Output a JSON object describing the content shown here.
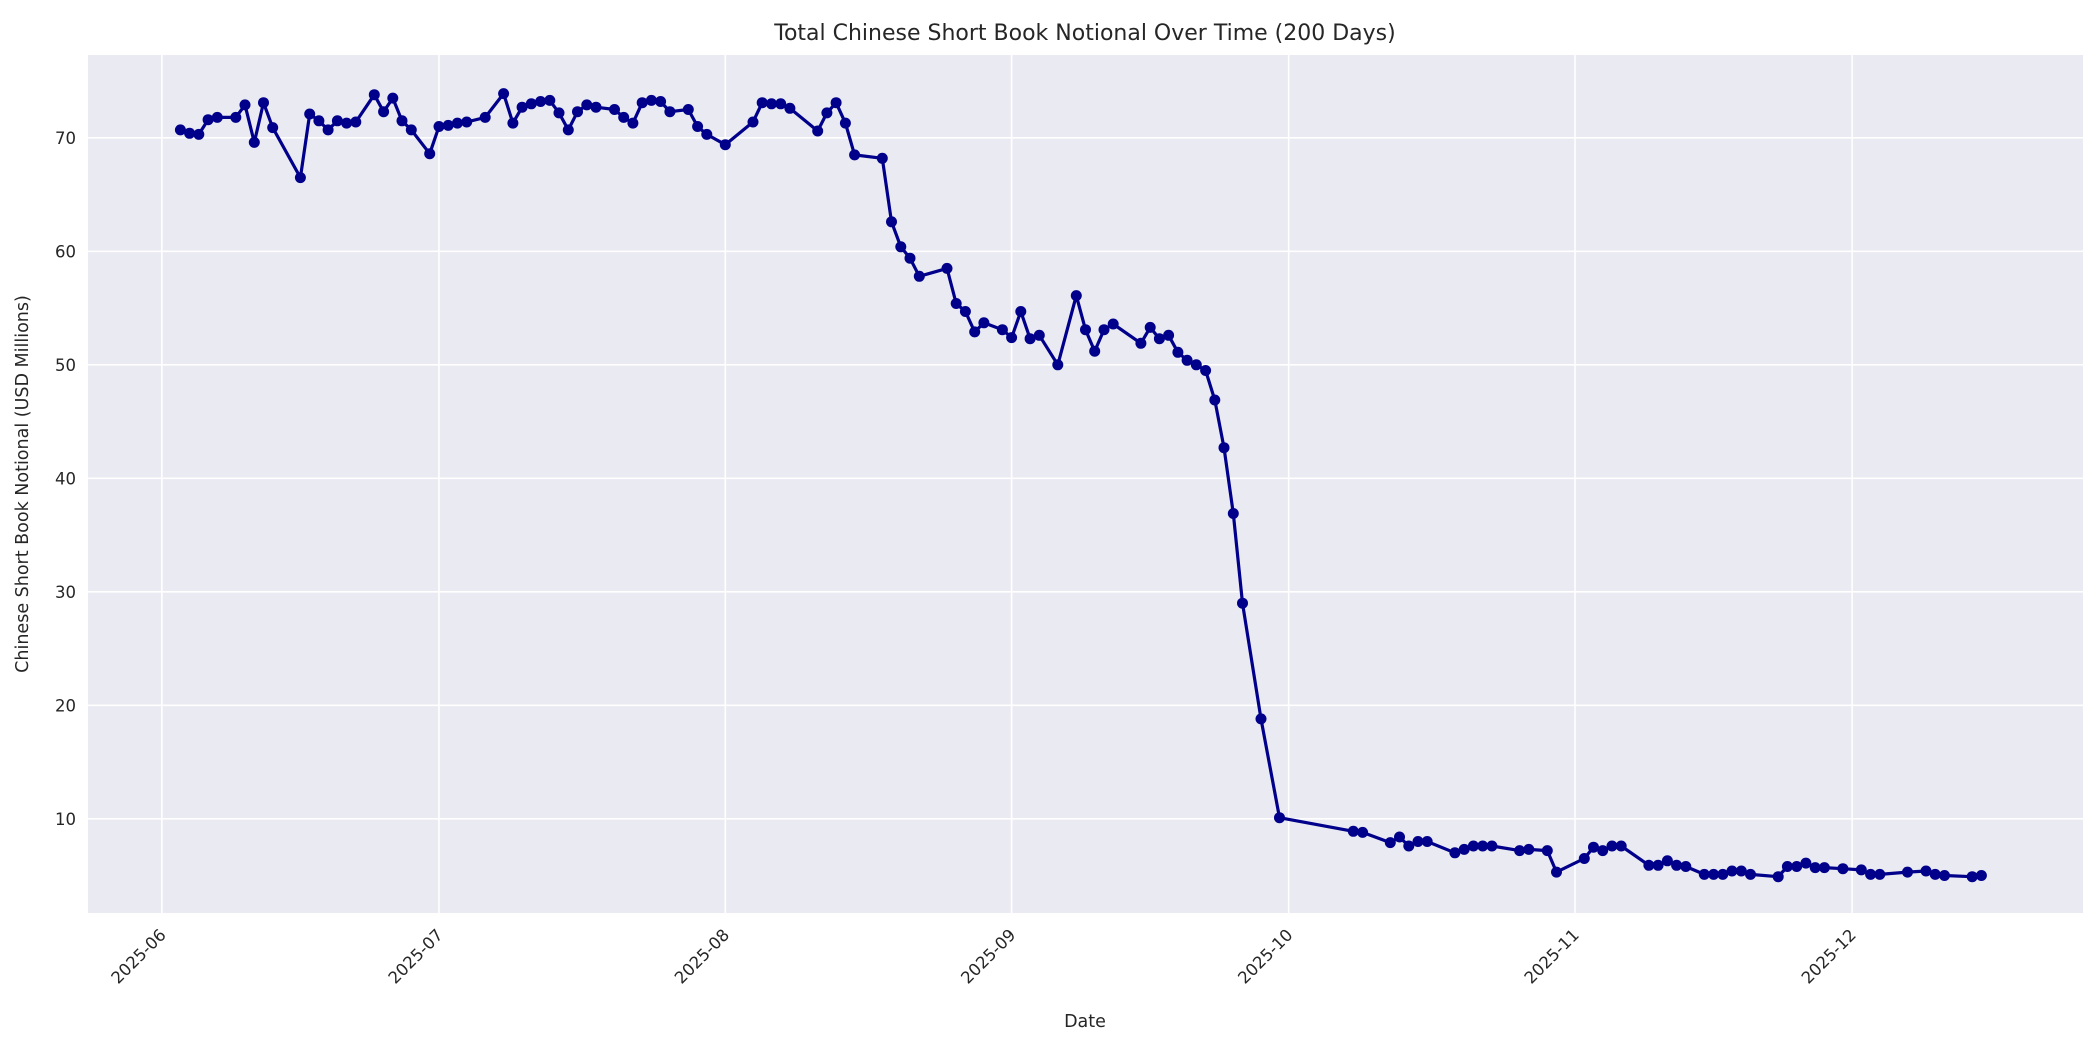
{
  "chart_data": {
    "type": "line",
    "title": "Total Chinese Short Book Notional Over Time (200 Days)",
    "xlabel": "Date",
    "ylabel": "Chinese Short Book Notional (USD Millions)",
    "grid": true,
    "legend": "none",
    "colors": {
      "line": "#00008B",
      "plot_background": "#EAEAF2",
      "figure_background": "#FFFFFF",
      "grid": "#FFFFFF",
      "text": "#262626"
    },
    "marker": "circle",
    "ylim": [
      1.7,
      77.3
    ],
    "yticks": [
      10,
      20,
      30,
      40,
      50,
      60,
      70
    ],
    "xlim": [
      "2025-05-24",
      "2025-12-26"
    ],
    "xticks": [
      {
        "date": "2025-06-01",
        "label": "2025-06"
      },
      {
        "date": "2025-07-01",
        "label": "2025-07"
      },
      {
        "date": "2025-08-01",
        "label": "2025-08"
      },
      {
        "date": "2025-09-01",
        "label": "2025-09"
      },
      {
        "date": "2025-10-01",
        "label": "2025-10"
      },
      {
        "date": "2025-11-01",
        "label": "2025-11"
      },
      {
        "date": "2025-12-01",
        "label": "2025-12"
      }
    ],
    "series": [
      {
        "name": "Chinese Short Book Notional",
        "dates": [
          "2025-06-03",
          "2025-06-04",
          "2025-06-05",
          "2025-06-06",
          "2025-06-07",
          "2025-06-09",
          "2025-06-10",
          "2025-06-11",
          "2025-06-12",
          "2025-06-13",
          "2025-06-16",
          "2025-06-17",
          "2025-06-18",
          "2025-06-19",
          "2025-06-20",
          "2025-06-21",
          "2025-06-22",
          "2025-06-24",
          "2025-06-25",
          "2025-06-26",
          "2025-06-27",
          "2025-06-28",
          "2025-06-30",
          "2025-07-01",
          "2025-07-02",
          "2025-07-03",
          "2025-07-04",
          "2025-07-06",
          "2025-07-08",
          "2025-07-09",
          "2025-07-10",
          "2025-07-11",
          "2025-07-12",
          "2025-07-13",
          "2025-07-14",
          "2025-07-15",
          "2025-07-16",
          "2025-07-17",
          "2025-07-18",
          "2025-07-20",
          "2025-07-21",
          "2025-07-22",
          "2025-07-23",
          "2025-07-24",
          "2025-07-25",
          "2025-07-26",
          "2025-07-28",
          "2025-07-29",
          "2025-07-30",
          "2025-08-01",
          "2025-08-04",
          "2025-08-05",
          "2025-08-06",
          "2025-08-07",
          "2025-08-08",
          "2025-08-11",
          "2025-08-12",
          "2025-08-13",
          "2025-08-14",
          "2025-08-15",
          "2025-08-18",
          "2025-08-19",
          "2025-08-20",
          "2025-08-21",
          "2025-08-22",
          "2025-08-25",
          "2025-08-26",
          "2025-08-27",
          "2025-08-28",
          "2025-08-29",
          "2025-08-31",
          "2025-09-01",
          "2025-09-02",
          "2025-09-03",
          "2025-09-04",
          "2025-09-06",
          "2025-09-08",
          "2025-09-09",
          "2025-09-10",
          "2025-09-11",
          "2025-09-12",
          "2025-09-15",
          "2025-09-16",
          "2025-09-17",
          "2025-09-18",
          "2025-09-19",
          "2025-09-20",
          "2025-09-21",
          "2025-09-22",
          "2025-09-23",
          "2025-09-24",
          "2025-09-25",
          "2025-09-26",
          "2025-09-28",
          "2025-09-30",
          "2025-10-08",
          "2025-10-09",
          "2025-10-12",
          "2025-10-13",
          "2025-10-14",
          "2025-10-15",
          "2025-10-16",
          "2025-10-19",
          "2025-10-20",
          "2025-10-21",
          "2025-10-22",
          "2025-10-23",
          "2025-10-26",
          "2025-10-27",
          "2025-10-29",
          "2025-10-30",
          "2025-11-02",
          "2025-11-03",
          "2025-11-04",
          "2025-11-05",
          "2025-11-06",
          "2025-11-09",
          "2025-11-10",
          "2025-11-11",
          "2025-11-12",
          "2025-11-13",
          "2025-11-15",
          "2025-11-16",
          "2025-11-17",
          "2025-11-18",
          "2025-11-19",
          "2025-11-20",
          "2025-11-23",
          "2025-11-24",
          "2025-11-25",
          "2025-11-26",
          "2025-11-27",
          "2025-11-28",
          "2025-11-30",
          "2025-12-02",
          "2025-12-03",
          "2025-12-04",
          "2025-12-07",
          "2025-12-09",
          "2025-12-10",
          "2025-12-11",
          "2025-12-14",
          "2025-12-15"
        ],
        "values": [
          70.7,
          70.4,
          70.3,
          71.6,
          71.8,
          71.8,
          72.9,
          69.6,
          73.1,
          70.9,
          66.5,
          72.1,
          71.5,
          70.7,
          71.5,
          71.3,
          71.4,
          73.8,
          72.3,
          73.5,
          71.5,
          70.7,
          68.6,
          71.0,
          71.1,
          71.3,
          71.4,
          71.8,
          73.9,
          71.3,
          72.7,
          73.0,
          73.2,
          73.3,
          72.2,
          70.7,
          72.3,
          72.9,
          72.7,
          72.5,
          71.8,
          71.3,
          73.1,
          73.3,
          73.2,
          72.3,
          72.5,
          71.0,
          70.3,
          69.4,
          71.4,
          73.1,
          73.0,
          73.0,
          72.6,
          70.6,
          72.2,
          73.1,
          71.3,
          68.5,
          68.2,
          62.6,
          60.4,
          59.4,
          57.8,
          58.5,
          55.4,
          54.7,
          52.9,
          53.7,
          53.1,
          52.4,
          54.7,
          52.3,
          52.6,
          50.0,
          56.1,
          53.1,
          51.2,
          53.1,
          53.6,
          51.9,
          53.3,
          52.3,
          52.6,
          51.1,
          50.4,
          50.0,
          49.5,
          46.9,
          42.7,
          36.9,
          29.0,
          18.8,
          10.1,
          8.9,
          8.8,
          7.9,
          8.4,
          7.6,
          8.0,
          8.0,
          7.0,
          7.3,
          7.6,
          7.6,
          7.6,
          7.2,
          7.3,
          7.2,
          5.3,
          6.5,
          7.5,
          7.2,
          7.6,
          7.6,
          5.9,
          5.9,
          6.3,
          5.9,
          5.8,
          5.1,
          5.1,
          5.1,
          5.4,
          5.4,
          5.1,
          4.9,
          5.8,
          5.8,
          6.1,
          5.7,
          5.7,
          5.6,
          5.5,
          5.1,
          5.1,
          5.3,
          5.4,
          5.1,
          5.0,
          4.9,
          5.0
        ]
      }
    ]
  }
}
